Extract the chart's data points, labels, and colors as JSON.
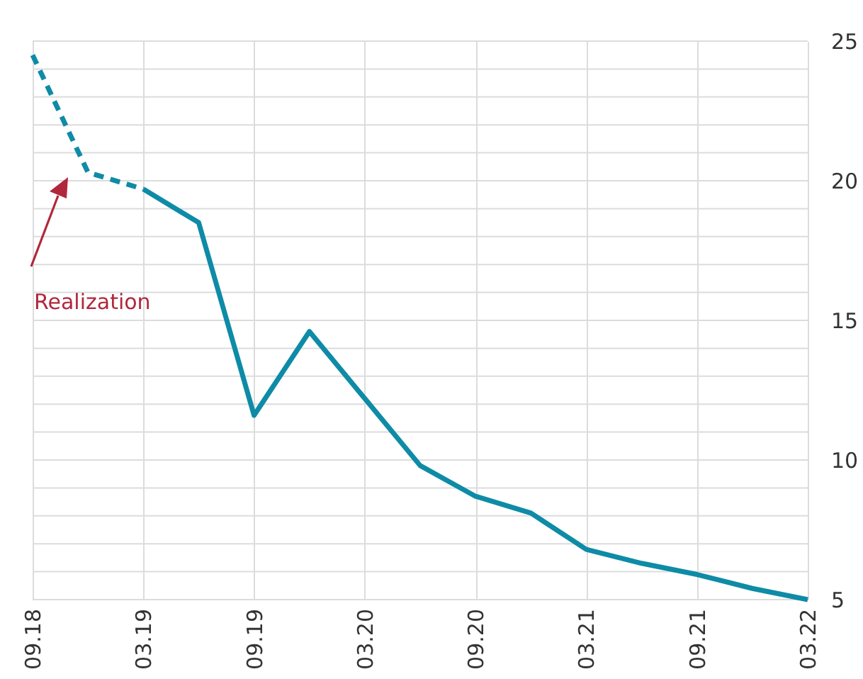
{
  "chart_data": {
    "type": "line",
    "categories": [
      "09.18",
      null,
      "03.19",
      null,
      "09.19",
      null,
      "03.20",
      null,
      "09.20",
      null,
      "03.21",
      null,
      "09.21",
      null,
      "03.22"
    ],
    "series": [
      {
        "color": "#0e8ba6",
        "line_style": "dashed",
        "values": [
          24.5,
          20.3,
          19.7,
          null,
          null,
          null,
          null,
          null,
          null,
          null,
          null,
          null,
          null,
          null,
          null
        ]
      },
      {
        "color": "#0e8ba6",
        "line_style": "solid",
        "values": [
          null,
          null,
          19.7,
          18.5,
          11.6,
          14.6,
          12.2,
          9.8,
          8.7,
          8.1,
          6.8,
          6.3,
          5.9,
          5.4,
          5.0
        ]
      }
    ],
    "ylim": [
      5,
      25
    ],
    "yticks": [
      5,
      {
        "value": 6,
        "label": null
      },
      {
        "value": 7,
        "label": null
      },
      {
        "value": 8,
        "label": null
      },
      {
        "value": 9,
        "label": null
      },
      10,
      {
        "value": 11,
        "label": null
      },
      {
        "value": 12,
        "label": null
      },
      {
        "value": 13,
        "label": null
      },
      {
        "value": 14,
        "label": null
      },
      15,
      {
        "value": 16,
        "label": null
      },
      {
        "value": 17,
        "label": null
      },
      {
        "value": 18,
        "label": null
      },
      {
        "value": 19,
        "label": null
      },
      20,
      {
        "value": 21,
        "label": null
      },
      {
        "value": 22,
        "label": null
      },
      {
        "value": 23,
        "label": null
      },
      {
        "value": 24,
        "label": null
      },
      25
    ],
    "annotations": [
      "Realization"
    ],
    "grid": true
  }
}
